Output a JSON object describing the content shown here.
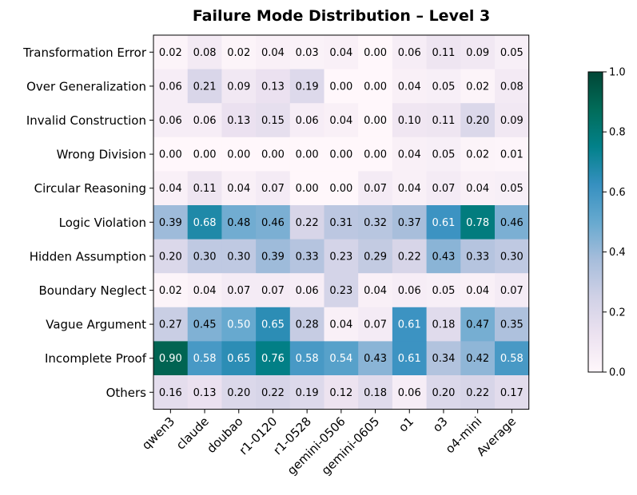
{
  "chart_data": {
    "type": "heatmap",
    "title": "Failure Mode Distribution – Level 3",
    "xlabel": "",
    "ylabel": "",
    "columns": [
      "qwen3",
      "claude",
      "doubao",
      "r1-0120",
      "r1-0528",
      "gemini-0506",
      "gemini-0605",
      "o1",
      "o3",
      "o4-mini",
      "Average"
    ],
    "rows": [
      "Transformation Error",
      "Over Generalization",
      "Invalid Construction",
      "Wrong Division",
      "Circular Reasoning",
      "Logic Violation",
      "Hidden Assumption",
      "Boundary Neglect",
      "Vague Argument",
      "Incomplete Proof",
      "Others"
    ],
    "values": [
      [
        0.02,
        0.08,
        0.02,
        0.04,
        0.03,
        0.04,
        0.0,
        0.06,
        0.11,
        0.09,
        0.05
      ],
      [
        0.06,
        0.21,
        0.09,
        0.13,
        0.19,
        0.0,
        0.0,
        0.04,
        0.05,
        0.02,
        0.08
      ],
      [
        0.06,
        0.06,
        0.13,
        0.15,
        0.06,
        0.04,
        0.0,
        0.1,
        0.11,
        0.2,
        0.09
      ],
      [
        0.0,
        0.0,
        0.0,
        0.0,
        0.0,
        0.0,
        0.0,
        0.04,
        0.05,
        0.02,
        0.01
      ],
      [
        0.04,
        0.11,
        0.04,
        0.07,
        0.0,
        0.0,
        0.07,
        0.04,
        0.07,
        0.04,
        0.05
      ],
      [
        0.39,
        0.68,
        0.48,
        0.46,
        0.22,
        0.31,
        0.32,
        0.37,
        0.61,
        0.78,
        0.46
      ],
      [
        0.2,
        0.3,
        0.3,
        0.39,
        0.33,
        0.23,
        0.29,
        0.22,
        0.43,
        0.33,
        0.3
      ],
      [
        0.02,
        0.04,
        0.07,
        0.07,
        0.06,
        0.23,
        0.04,
        0.06,
        0.05,
        0.04,
        0.07
      ],
      [
        0.27,
        0.45,
        0.5,
        0.65,
        0.28,
        0.04,
        0.07,
        0.61,
        0.18,
        0.47,
        0.35
      ],
      [
        0.9,
        0.58,
        0.65,
        0.76,
        0.58,
        0.54,
        0.43,
        0.61,
        0.34,
        0.42,
        0.58
      ],
      [
        0.16,
        0.13,
        0.2,
        0.22,
        0.19,
        0.12,
        0.18,
        0.06,
        0.2,
        0.22,
        0.17
      ]
    ],
    "value_format_decimals": 2,
    "colormap": "PuBuGn",
    "colormap_stops": [
      "#fff7fb",
      "#ece2f0",
      "#d0d1e6",
      "#a6bddb",
      "#67a9cf",
      "#3690c0",
      "#02818a",
      "#016c59",
      "#014636"
    ],
    "vmin": 0.0,
    "vmax": 1.0,
    "colorbar_ticks": [
      "0.0",
      "0.2",
      "0.4",
      "0.6",
      "0.8",
      "1.0"
    ],
    "text_color_dark": "#000000",
    "text_color_light": "#ffffff",
    "grid": false,
    "legend": "colorbar-right"
  }
}
